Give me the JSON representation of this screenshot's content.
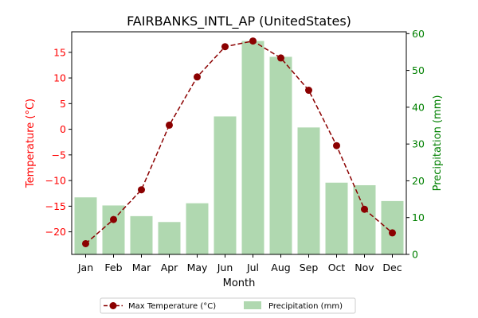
{
  "chart_data": {
    "type": "bar+line",
    "title": "FAIRBANKS_INTL_AP (UnitedStates)",
    "xlabel": "Month",
    "ylabel_left": "Temperature (°C)",
    "ylabel_right": "Precipitation (mm)",
    "categories": [
      "Jan",
      "Feb",
      "Mar",
      "Apr",
      "May",
      "Jun",
      "Jul",
      "Aug",
      "Sep",
      "Oct",
      "Nov",
      "Dec"
    ],
    "ylim_left": [
      -24.4,
      19.0
    ],
    "yticks_left": [
      -20,
      -15,
      -10,
      -5,
      0,
      5,
      10,
      15
    ],
    "ylim_right": [
      0,
      60.5
    ],
    "yticks_right": [
      0,
      10,
      20,
      30,
      40,
      50,
      60
    ],
    "series": [
      {
        "name": "Max Temperature (°C)",
        "type": "line",
        "axis": "left",
        "color": "#8b0000",
        "values": [
          -22.3,
          -17.6,
          -11.8,
          0.8,
          10.2,
          16.1,
          17.2,
          13.9,
          7.6,
          -3.2,
          -15.6,
          -20.2
        ]
      },
      {
        "name": "Precipitation (mm)",
        "type": "bar",
        "axis": "right",
        "color": "#b0d8b0",
        "values": [
          15.5,
          13.3,
          10.4,
          8.8,
          13.9,
          37.5,
          58.0,
          53.7,
          34.5,
          19.5,
          18.8,
          14.5
        ]
      }
    ],
    "colors": {
      "left_axis": "#ff0000",
      "right_axis": "#008000",
      "text": "#000000"
    }
  }
}
